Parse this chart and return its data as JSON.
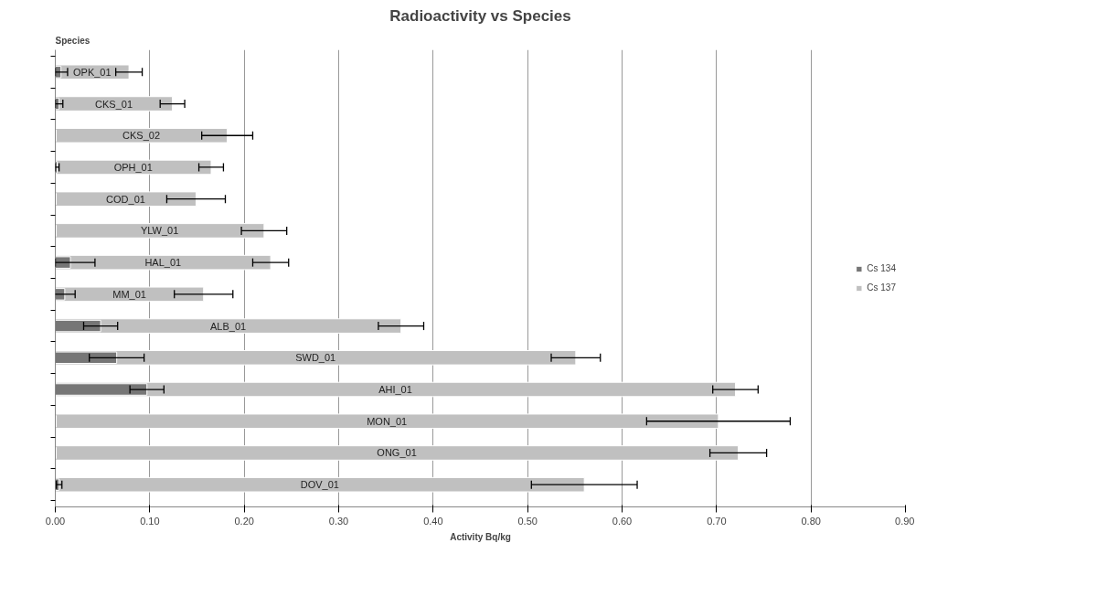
{
  "chart_data": {
    "type": "bar",
    "orientation": "horizontal",
    "title": "Radioactivity vs Species",
    "xlabel": "Activity Bq/kg",
    "ylabel": "Species",
    "categories": [
      "OPK_01",
      "CKS_01",
      "CKS_02",
      "OPH_01",
      "COD_01",
      "YLW_01",
      "HAL_01",
      "MM_01",
      "ALB_01",
      "SWD_01",
      "AHI_01",
      "MON_01",
      "ONG_01",
      "DOV_01"
    ],
    "series": [
      {
        "name": "Cs 134",
        "color": "#767676",
        "values": [
          0.006,
          0.004,
          0.001,
          0.002,
          0.001,
          0.001,
          0.016,
          0.01,
          0.048,
          0.065,
          0.097,
          0.001,
          0.001,
          0.004
        ],
        "errors": [
          [
            0,
            0.013
          ],
          0.004,
          null,
          0.002,
          null,
          null,
          [
            0,
            0.042
          ],
          0.011,
          0.018,
          0.029,
          0.018,
          null,
          null,
          0.003
        ]
      },
      {
        "name": "Cs 137",
        "color": "#c0c0c0",
        "values": [
          0.078,
          0.124,
          0.182,
          0.165,
          0.149,
          0.221,
          0.228,
          0.157,
          0.366,
          0.551,
          0.72,
          0.702,
          0.723,
          0.56
        ],
        "errors": [
          0.014,
          0.013,
          0.027,
          0.013,
          0.031,
          0.024,
          0.019,
          0.031,
          0.024,
          0.026,
          0.024,
          0.076,
          0.03,
          0.056
        ]
      }
    ],
    "xlim": [
      0,
      0.9
    ],
    "xticks": [
      {
        "value": 0,
        "label": "0.00"
      },
      {
        "value": 0.1,
        "label": "0.10"
      },
      {
        "value": 0.2,
        "label": "0.20"
      },
      {
        "value": 0.3,
        "label": "0.30"
      },
      {
        "value": 0.4,
        "label": "0.40"
      },
      {
        "value": 0.5,
        "label": "0.50"
      },
      {
        "value": 0.6,
        "label": "0.60"
      },
      {
        "value": 0.7,
        "label": "0.70"
      },
      {
        "value": 0.8,
        "label": "0.80"
      },
      {
        "value": 0.9,
        "label": "0.90"
      }
    ],
    "grid": "x",
    "legend": "right"
  }
}
